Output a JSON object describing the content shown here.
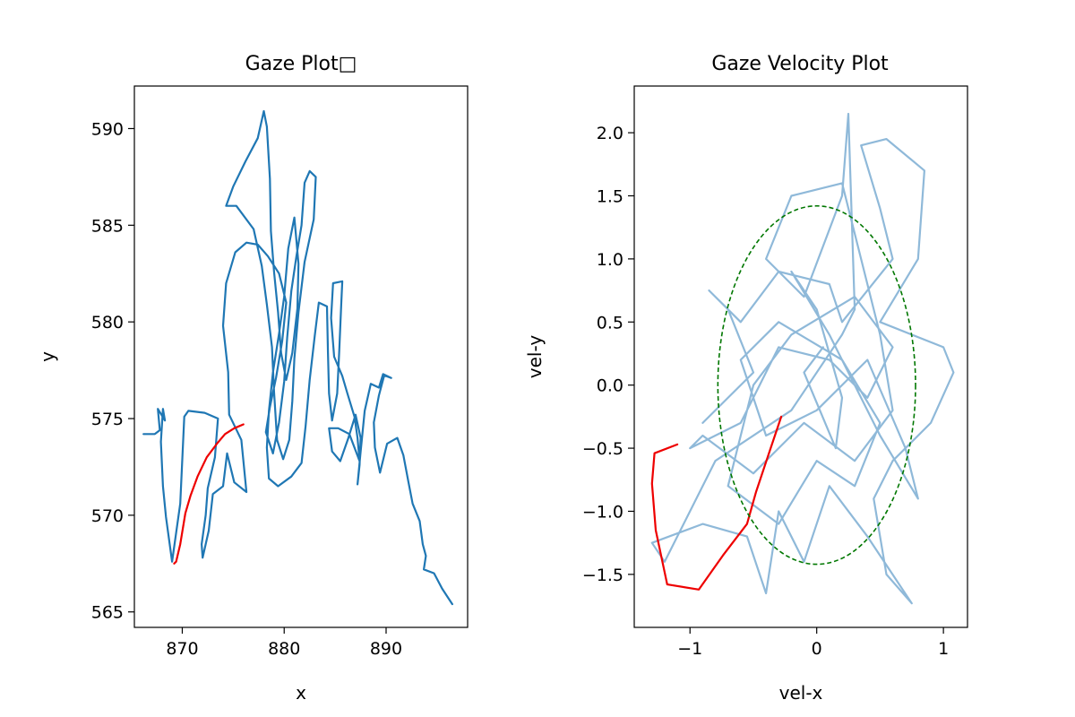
{
  "chart_data": [
    {
      "type": "line",
      "title": "Gaze Plot□",
      "xlabel": "x",
      "ylabel": "y",
      "xlim": [
        865.3,
        898.0
      ],
      "ylim": [
        564.2,
        592.2
      ],
      "xticks": [
        "870",
        "880",
        "890"
      ],
      "xtick_values": [
        870,
        880,
        890
      ],
      "yticks": [
        "565",
        "570",
        "575",
        "580",
        "585",
        "590"
      ],
      "ytick_values": [
        565,
        570,
        575,
        580,
        585,
        590
      ],
      "colors": {
        "trace": "#1f77b4",
        "highlight": "#ee0000"
      },
      "series": [
        {
          "role": "trace",
          "points": [
            [
              866.2,
              574.2
            ],
            [
              867.3,
              574.2
            ],
            [
              867.8,
              574.4
            ],
            [
              867.6,
              575.5
            ],
            [
              868.3,
              574.9
            ],
            [
              868.1,
              575.5
            ],
            [
              867.9,
              573.8
            ],
            [
              868.1,
              571.5
            ],
            [
              868.4,
              569.9
            ],
            [
              869.0,
              567.6
            ],
            [
              869.8,
              570.6
            ],
            [
              870.2,
              575.1
            ],
            [
              870.6,
              575.4
            ],
            [
              872.2,
              575.3
            ],
            [
              873.5,
              575.0
            ],
            [
              873.2,
              573.0
            ],
            [
              872.5,
              571.4
            ],
            [
              872.3,
              570.0
            ],
            [
              871.9,
              568.5
            ],
            [
              872.0,
              567.8
            ],
            [
              872.6,
              569.2
            ],
            [
              873.0,
              571.1
            ],
            [
              874.0,
              571.5
            ],
            [
              874.4,
              573.2
            ],
            [
              875.1,
              571.7
            ],
            [
              876.3,
              571.2
            ],
            [
              875.8,
              573.9
            ],
            [
              874.6,
              575.2
            ],
            [
              874.5,
              577.4
            ],
            [
              874.0,
              579.8
            ],
            [
              874.3,
              582.0
            ],
            [
              875.2,
              583.6
            ],
            [
              876.3,
              584.1
            ],
            [
              877.4,
              584.0
            ],
            [
              878.4,
              583.4
            ],
            [
              879.5,
              582.5
            ],
            [
              880.2,
              581.0
            ],
            [
              879.8,
              579.0
            ],
            [
              879.2,
              577.1
            ],
            [
              878.6,
              575.6
            ],
            [
              878.2,
              574.3
            ],
            [
              878.9,
              573.2
            ],
            [
              879.5,
              574.8
            ],
            [
              880.0,
              576.9
            ],
            [
              880.3,
              579.2
            ],
            [
              880.7,
              581.6
            ],
            [
              881.2,
              583.4
            ],
            [
              881.7,
              585.0
            ],
            [
              882.0,
              587.2
            ],
            [
              882.5,
              587.8
            ],
            [
              883.1,
              587.5
            ],
            [
              882.9,
              585.3
            ],
            [
              882.0,
              583.1
            ],
            [
              881.4,
              580.5
            ],
            [
              881.0,
              578.1
            ],
            [
              880.8,
              575.9
            ],
            [
              880.5,
              573.9
            ],
            [
              879.9,
              572.9
            ],
            [
              879.3,
              573.9
            ],
            [
              879.0,
              576.4
            ],
            [
              878.8,
              578.7
            ],
            [
              878.3,
              580.9
            ],
            [
              877.8,
              582.9
            ],
            [
              877.0,
              584.8
            ],
            [
              875.3,
              586.0
            ],
            [
              874.3,
              586.0
            ],
            [
              875.0,
              587.0
            ],
            [
              876.2,
              588.3
            ],
            [
              877.4,
              589.5
            ],
            [
              878.0,
              590.9
            ],
            [
              878.3,
              590.1
            ],
            [
              878.6,
              587.4
            ],
            [
              878.7,
              584.7
            ],
            [
              879.0,
              582.6
            ],
            [
              879.4,
              580.5
            ],
            [
              879.7,
              578.4
            ],
            [
              880.2,
              577.0
            ],
            [
              880.8,
              578.4
            ],
            [
              881.3,
              580.7
            ],
            [
              881.4,
              583.0
            ],
            [
              881.0,
              585.4
            ],
            [
              880.4,
              583.8
            ],
            [
              880.0,
              581.3
            ],
            [
              879.5,
              579.4
            ],
            [
              878.9,
              577.4
            ],
            [
              878.5,
              575.4
            ],
            [
              878.3,
              573.5
            ],
            [
              878.5,
              571.9
            ],
            [
              879.4,
              571.5
            ],
            [
              880.7,
              572.0
            ],
            [
              881.7,
              572.7
            ],
            [
              882.1,
              574.6
            ],
            [
              882.5,
              577.0
            ],
            [
              883.0,
              579.3
            ],
            [
              883.4,
              581.0
            ],
            [
              884.2,
              580.8
            ],
            [
              884.3,
              578.4
            ],
            [
              884.4,
              576.3
            ],
            [
              884.7,
              574.9
            ],
            [
              885.2,
              576.3
            ],
            [
              885.4,
              578.5
            ],
            [
              885.6,
              580.9
            ],
            [
              885.7,
              582.1
            ],
            [
              884.8,
              582.0
            ],
            [
              884.6,
              580.2
            ],
            [
              884.9,
              578.2
            ],
            [
              885.7,
              577.2
            ],
            [
              886.2,
              576.3
            ],
            [
              886.9,
              575.1
            ],
            [
              887.2,
              574.0
            ],
            [
              887.4,
              572.8
            ],
            [
              886.4,
              574.2
            ],
            [
              885.3,
              574.5
            ],
            [
              884.4,
              574.5
            ],
            [
              884.7,
              573.3
            ],
            [
              885.5,
              572.8
            ],
            [
              886.3,
              574.0
            ],
            [
              887.0,
              575.2
            ],
            [
              887.5,
              574.0
            ],
            [
              887.4,
              572.6
            ],
            [
              887.2,
              571.6
            ],
            [
              887.5,
              573.3
            ],
            [
              887.9,
              575.4
            ],
            [
              888.5,
              576.8
            ],
            [
              889.3,
              576.6
            ],
            [
              889.7,
              577.3
            ],
            [
              890.5,
              577.1
            ],
            [
              890.0,
              577.2
            ],
            [
              889.8,
              577.2
            ],
            [
              889.3,
              576.2
            ],
            [
              888.8,
              574.8
            ],
            [
              888.9,
              573.5
            ],
            [
              889.4,
              572.2
            ],
            [
              890.1,
              573.7
            ],
            [
              891.1,
              574.0
            ],
            [
              891.7,
              573.1
            ],
            [
              892.2,
              571.7
            ],
            [
              892.6,
              570.6
            ],
            [
              893.3,
              569.7
            ],
            [
              893.6,
              568.5
            ],
            [
              893.9,
              567.9
            ],
            [
              893.7,
              567.2
            ],
            [
              894.7,
              567.0
            ],
            [
              895.5,
              566.2
            ],
            [
              896.5,
              565.4
            ]
          ]
        },
        {
          "role": "highlight",
          "points": [
            [
              869.2,
              567.5
            ],
            [
              869.4,
              567.6
            ],
            [
              869.8,
              568.5
            ],
            [
              870.3,
              570.1
            ],
            [
              870.8,
              571.0
            ],
            [
              871.5,
              572.0
            ],
            [
              872.4,
              573.0
            ],
            [
              873.4,
              573.7
            ],
            [
              874.2,
              574.2
            ],
            [
              875.1,
              574.5
            ],
            [
              876.0,
              574.7
            ]
          ]
        }
      ]
    },
    {
      "type": "line",
      "title": "Gaze Velocity Plot",
      "xlabel": "vel-x",
      "ylabel": "vel-y",
      "xlim": [
        -1.44,
        1.19
      ],
      "ylim": [
        -1.92,
        2.37
      ],
      "xticks": [
        "−1",
        "0",
        "1"
      ],
      "xtick_values": [
        -1,
        0,
        1
      ],
      "yticks": [
        "−1.5",
        "−1.0",
        "−0.5",
        "0.0",
        "0.5",
        "1.0",
        "1.5",
        "2.0"
      ],
      "ytick_values": [
        -1.5,
        -1.0,
        -0.5,
        0.0,
        0.5,
        1.0,
        1.5,
        2.0
      ],
      "colors": {
        "trace": "#8fb9d9",
        "highlight": "#ee0000",
        "ellipse": "#007700"
      },
      "ellipse": {
        "cx": 0.0,
        "cy": 0.0,
        "rx": 0.78,
        "ry": 1.42
      },
      "series": [
        {
          "role": "trace",
          "points": [
            [
              -0.9,
              -0.3
            ],
            [
              -0.5,
              0.1
            ],
            [
              -0.7,
              0.6
            ],
            [
              -0.85,
              0.75
            ],
            [
              -0.6,
              0.5
            ],
            [
              -0.3,
              0.9
            ],
            [
              0.1,
              0.8
            ],
            [
              0.2,
              0.5
            ],
            [
              0.6,
              1.0
            ],
            [
              0.5,
              1.4
            ],
            [
              0.35,
              1.9
            ],
            [
              0.55,
              1.95
            ],
            [
              0.85,
              1.7
            ],
            [
              0.8,
              1.0
            ],
            [
              0.5,
              0.5
            ],
            [
              1.0,
              0.3
            ],
            [
              1.08,
              0.1
            ],
            [
              0.9,
              -0.3
            ],
            [
              0.6,
              -0.6
            ],
            [
              0.45,
              -0.9
            ],
            [
              0.55,
              -1.5
            ],
            [
              0.75,
              -1.73
            ],
            [
              0.4,
              -1.2
            ],
            [
              0.1,
              -0.8
            ],
            [
              -0.1,
              -1.4
            ],
            [
              -0.3,
              -1.0
            ],
            [
              -0.4,
              -1.65
            ],
            [
              -0.55,
              -1.2
            ],
            [
              -0.9,
              -1.1
            ],
            [
              -1.3,
              -1.25
            ],
            [
              -1.2,
              -1.4
            ],
            [
              -0.8,
              -0.6
            ],
            [
              -0.2,
              -0.2
            ],
            [
              0.2,
              0.4
            ],
            [
              0.3,
              0.6
            ],
            [
              0.25,
              2.15
            ],
            [
              0.2,
              1.5
            ],
            [
              -0.1,
              0.7
            ],
            [
              -0.4,
              1.0
            ],
            [
              -0.2,
              1.5
            ],
            [
              0.2,
              1.6
            ],
            [
              0.5,
              0.4
            ],
            [
              0.6,
              -0.2
            ],
            [
              0.3,
              -0.6
            ],
            [
              -0.1,
              -0.3
            ],
            [
              -0.5,
              -0.7
            ],
            [
              -0.9,
              -0.4
            ],
            [
              -1.0,
              -0.5
            ],
            [
              -0.6,
              -0.3
            ],
            [
              -0.3,
              0.3
            ],
            [
              0.1,
              0.2
            ],
            [
              0.4,
              -0.1
            ],
            [
              0.6,
              0.3
            ],
            [
              0.3,
              0.7
            ],
            [
              -0.2,
              0.4
            ],
            [
              -0.5,
              0.0
            ],
            [
              -0.7,
              -0.8
            ],
            [
              -0.3,
              -1.1
            ],
            [
              0.0,
              -0.6
            ],
            [
              0.3,
              -0.8
            ],
            [
              0.5,
              -0.3
            ],
            [
              0.2,
              0.2
            ],
            [
              -0.3,
              0.5
            ],
            [
              -0.6,
              0.2
            ],
            [
              -0.4,
              -0.4
            ],
            [
              0.0,
              -0.2
            ],
            [
              0.4,
              0.2
            ],
            [
              0.7,
              -0.5
            ],
            [
              0.8,
              -0.9
            ],
            [
              0.5,
              -0.4
            ],
            [
              0.1,
              0.4
            ],
            [
              -0.2,
              0.9
            ],
            [
              0.0,
              0.6
            ],
            [
              0.2,
              -0.1
            ],
            [
              0.15,
              -0.5
            ],
            [
              -0.1,
              0.1
            ],
            [
              0.05,
              0.3
            ]
          ]
        },
        {
          "role": "highlight",
          "points": [
            [
              -0.28,
              -0.25
            ],
            [
              -0.38,
              -0.55
            ],
            [
              -0.48,
              -0.85
            ],
            [
              -0.55,
              -1.1
            ],
            [
              -0.74,
              -1.35
            ],
            [
              -0.93,
              -1.62
            ],
            [
              -1.18,
              -1.58
            ],
            [
              -1.27,
              -1.15
            ],
            [
              -1.3,
              -0.78
            ],
            [
              -1.28,
              -0.54
            ],
            [
              -1.1,
              -0.47
            ]
          ]
        }
      ]
    }
  ]
}
